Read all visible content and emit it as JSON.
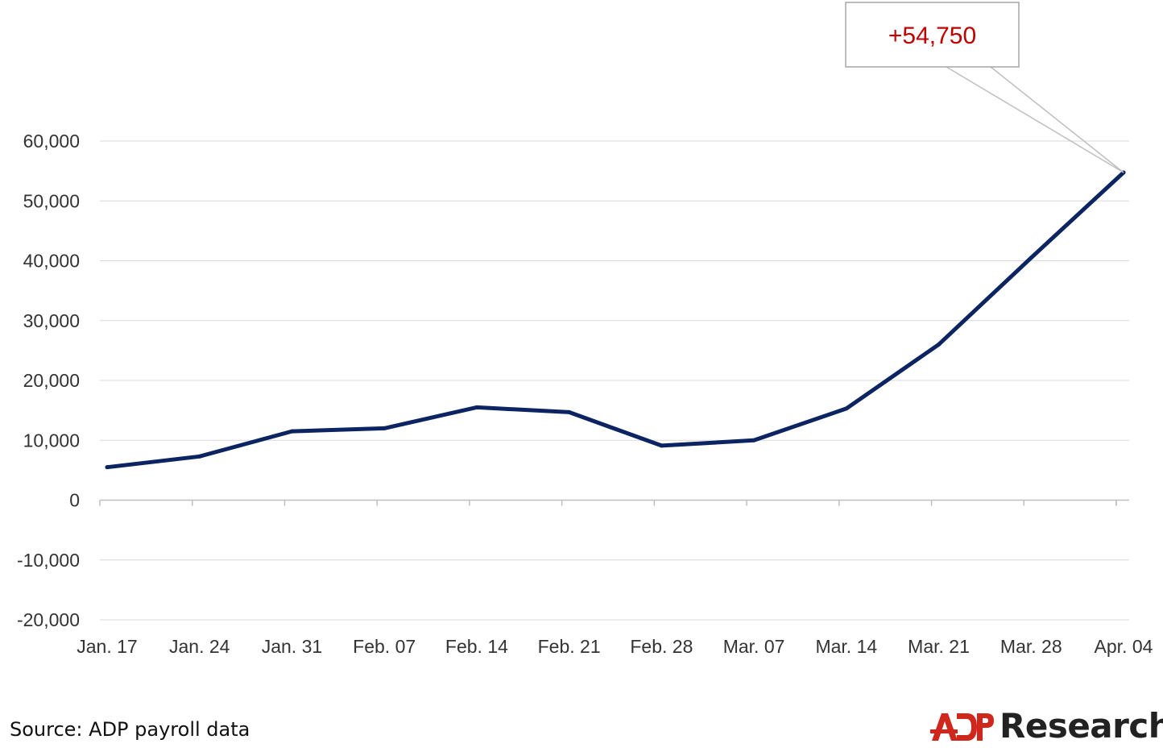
{
  "chart_data": {
    "type": "line",
    "title": "",
    "xlabel": "",
    "ylabel": "",
    "categories": [
      "Jan. 17",
      "Jan. 24",
      "Jan. 31",
      "Feb. 07",
      "Feb. 14",
      "Feb. 21",
      "Feb. 28",
      "Mar. 07",
      "Mar. 14",
      "Mar. 21",
      "Mar. 28",
      "Apr. 04"
    ],
    "series": [
      {
        "values": [
          5500,
          7300,
          11500,
          12000,
          15500,
          14700,
          9100,
          10000,
          15300,
          26000,
          40500,
          54750
        ]
      }
    ],
    "ylim": [
      -20000,
      60000
    ],
    "yticks": [
      60000,
      50000,
      40000,
      30000,
      20000,
      10000,
      0,
      -10000,
      -20000
    ],
    "ytick_labels": [
      "60,000",
      "50,000",
      "40,000",
      "30,000",
      "20,000",
      "10,000",
      "0",
      "-10,000",
      "-20,000"
    ],
    "grid": true,
    "legend": "none",
    "annotation": {
      "text": "+54,750",
      "target_category": "Apr. 04",
      "target_value": 54750
    },
    "colors": {
      "line": "#0c2461",
      "grid": "#d9d9d9",
      "annotation_text": "#c00000",
      "annotation_border": "#a6a6a6"
    }
  },
  "footer": {
    "source": "Source: ADP payroll data",
    "brand": "ADP",
    "brand_word": "Research",
    "brand_color": "#d0271d"
  }
}
